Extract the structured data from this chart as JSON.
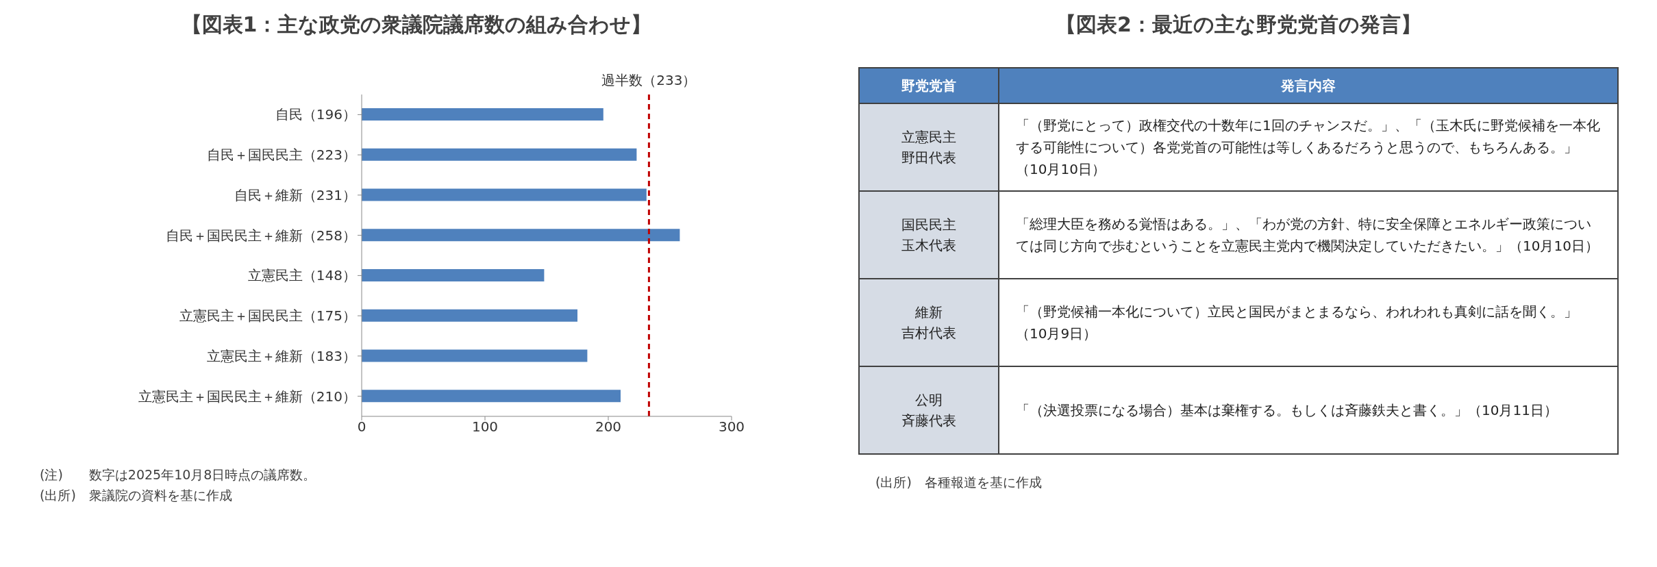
{
  "chart_data": [
    {
      "type": "bar",
      "orientation": "horizontal",
      "title": "【図表1：主な政党の衆議院議席数の組み合わせ】",
      "categories": [
        "自民（196）",
        "自民＋国民民主（223）",
        "自民＋維新（231）",
        "自民＋国民民主＋維新（258）",
        "立憲民主（148）",
        "立憲民主＋国民民主（175）",
        "立憲民主＋維新（183）",
        "立憲民主＋国民民主＋維新（210）"
      ],
      "values": [
        196,
        223,
        231,
        258,
        148,
        175,
        183,
        210
      ],
      "color": "#4f81bd",
      "xlim": [
        0,
        300
      ],
      "xticks": [
        0,
        100,
        200,
        300
      ],
      "ref_lines": [
        {
          "axis": "x",
          "value": 233,
          "label": "過半数（233）",
          "color": "#c00000",
          "line_style": "dashed"
        }
      ],
      "annotations": [
        "(注)　　数字は2025年10月8日時点の議席数。",
        "(出所)　衆議院の資料を基に作成"
      ]
    },
    {
      "type": "other",
      "title": "【図表2：最近の主な野党党首の発言】",
      "categories": [
        "野党党首",
        "発言内容"
      ],
      "y_categories": [
        "立憲民主",
        "国民民主",
        "維新",
        "公明"
      ],
      "y2_categories": [
        "野田代表",
        "玉木代表",
        "吉村代表",
        "斉藤代表"
      ],
      "annotations": [
        "「（野党にとって）政権交代の十数年に1回のチャンスだ。」、「（玉木氏に野党候補を一本化する可能性について）各党党首の可能性は等しくあるだろうと思うので、もちろんある。」（10月10日）",
        "「総理大臣を務める覚悟はある。」、「わが党の方針、特に安全保障とエネルギー政策については同じ方向で歩むということを立憲民主党内で機関決定していただきたい。」（10月10日）",
        "「（野党候補一本化について）立民と国民がまとまるなら、われわれも真剣に話を聞く。」（10月9日）",
        "「（決選投票になる場合）基本は棄権する。もしくは斉藤鉄夫と書く。」（10月11日）",
        "(出所)　各種報道を基に作成"
      ]
    }
  ]
}
